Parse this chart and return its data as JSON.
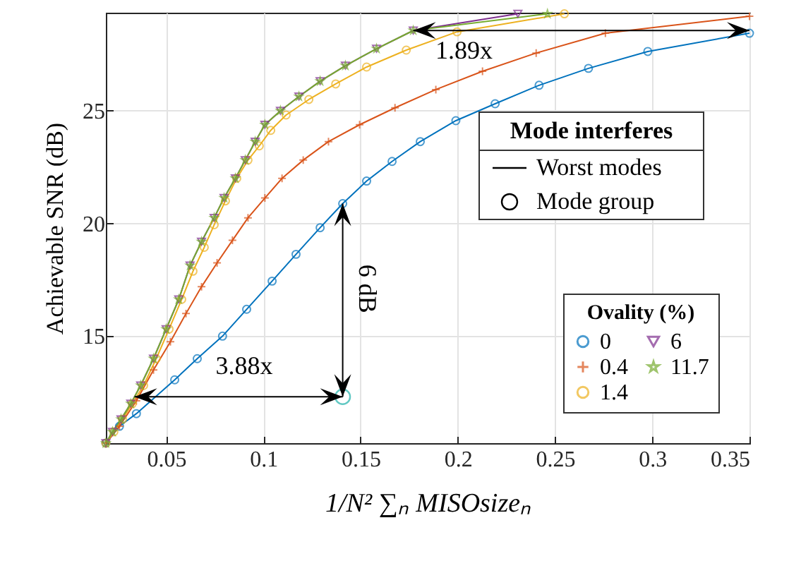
{
  "chart_data": {
    "type": "line",
    "xlabel": "1/N² ∑ₙ MISOsizeₙ",
    "ylabel": "Achievable SNR (dB)",
    "legend_title": "Ovality (%)",
    "legend": "bottom right",
    "grid": true,
    "xlim": [
      0.019,
      0.35
    ],
    "ylim": [
      10.25,
      29.35
    ],
    "xticks": [
      0.05,
      0.1,
      0.15,
      0.2,
      0.25,
      0.3,
      0.35
    ],
    "yticks": [
      15,
      20,
      25
    ],
    "series": [
      {
        "name": "0",
        "color": "#0072bd",
        "marker": "circle",
        "x": [
          0.019,
          0.026,
          0.0347,
          0.0544,
          0.066,
          0.079,
          0.0914,
          0.1045,
          0.1168,
          0.1292,
          0.1408,
          0.1531,
          0.1662,
          0.1807,
          0.199,
          0.2192,
          0.2418,
          0.2672,
          0.2977,
          0.35
        ],
        "values": [
          10.25,
          11.0,
          11.56,
          13.06,
          14.0,
          15.0,
          16.19,
          17.44,
          18.63,
          19.81,
          20.88,
          21.88,
          22.75,
          23.63,
          24.56,
          25.31,
          26.13,
          26.88,
          27.63,
          28.44
        ]
      },
      {
        "name": "0.4",
        "color": "#d95319",
        "marker": "cross",
        "x": [
          0.019,
          0.026,
          0.0347,
          0.0435,
          0.0522,
          0.0602,
          0.0682,
          0.0762,
          0.0841,
          0.0921,
          0.1008,
          0.1096,
          0.1205,
          0.1335,
          0.1495,
          0.1677,
          0.1887,
          0.2127,
          0.2403,
          0.2759,
          0.35
        ],
        "values": [
          10.25,
          11.0,
          12.13,
          13.5,
          14.75,
          16.0,
          17.19,
          18.25,
          19.25,
          20.25,
          21.13,
          22.0,
          22.81,
          23.63,
          24.38,
          25.13,
          25.94,
          26.75,
          27.56,
          28.44,
          29.19
        ]
      },
      {
        "name": "1.4",
        "color": "#edb120",
        "marker": "circle",
        "x": [
          0.019,
          0.0231,
          0.0275,
          0.0326,
          0.0384,
          0.0449,
          0.0515,
          0.058,
          0.0638,
          0.0696,
          0.0747,
          0.0805,
          0.0863,
          0.0921,
          0.0979,
          0.1038,
          0.1117,
          0.1234,
          0.1372,
          0.1531,
          0.1735,
          0.1996,
          0.2548
        ],
        "values": [
          10.25,
          10.75,
          11.31,
          12.0,
          12.81,
          14.0,
          15.31,
          16.63,
          17.88,
          18.94,
          19.94,
          21.0,
          22.0,
          22.81,
          23.44,
          24.13,
          24.81,
          25.5,
          26.19,
          26.94,
          27.69,
          28.5,
          29.3
        ]
      },
      {
        "name": "6",
        "color": "#7e2f8e",
        "marker": "triangle",
        "x": [
          0.019,
          0.0224,
          0.0268,
          0.0318,
          0.0369,
          0.0435,
          0.05,
          0.0565,
          0.0623,
          0.0682,
          0.0747,
          0.0798,
          0.0856,
          0.0907,
          0.0958,
          0.1008,
          0.1088,
          0.1183,
          0.1292,
          0.1422,
          0.1582,
          0.1771,
          0.2309
        ],
        "values": [
          10.25,
          10.75,
          11.31,
          12.0,
          12.81,
          14.0,
          15.31,
          16.63,
          18.13,
          19.19,
          20.25,
          21.13,
          22.0,
          22.81,
          23.63,
          24.38,
          25.0,
          25.63,
          26.31,
          27.0,
          27.75,
          28.56,
          29.3
        ]
      },
      {
        "name": "11.7",
        "color": "#77ac30",
        "marker": "star",
        "x": [
          0.019,
          0.0224,
          0.0268,
          0.0318,
          0.0369,
          0.0435,
          0.05,
          0.0565,
          0.0623,
          0.0682,
          0.0747,
          0.0798,
          0.0856,
          0.0907,
          0.0958,
          0.1008,
          0.1088,
          0.1183,
          0.1292,
          0.1422,
          0.1582,
          0.1771,
          0.2461
        ],
        "values": [
          10.25,
          10.75,
          11.31,
          12.0,
          12.81,
          14.0,
          15.31,
          16.63,
          18.13,
          19.19,
          20.25,
          21.13,
          22.0,
          22.81,
          23.63,
          24.38,
          25.0,
          25.63,
          26.31,
          27.0,
          27.75,
          28.56,
          29.3
        ]
      },
      {
        "type": "scatter",
        "color": "#20b2aa",
        "marker": "circle",
        "x": [
          0.1408
        ],
        "values": [
          12.31
        ]
      }
    ],
    "annotations": [
      "1.89x",
      "3.88x",
      "6 dB",
      "Mode interferes",
      "Worst modes",
      "Mode group"
    ]
  }
}
